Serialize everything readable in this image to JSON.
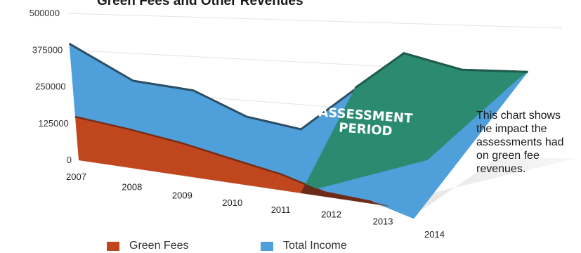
{
  "chart_data": {
    "type": "area",
    "title": "Green Fees and Other Revenues",
    "x": [
      "2007",
      "2008",
      "2009",
      "2010",
      "2011",
      "2012",
      "2013",
      "2014"
    ],
    "series": [
      {
        "name": "Green Fees",
        "values": [
          148000,
          125000,
          100000,
          70000,
          45000,
          12000,
          5000,
          -22000
        ]
      },
      {
        "name": "Total Income",
        "values": [
          397000,
          285000,
          268000,
          201000,
          179000,
          415000,
          377000,
          380000
        ]
      }
    ],
    "ylim": [
      0,
      500000
    ],
    "yticks": [
      "0",
      "125000",
      "250000",
      "375000",
      "500000"
    ],
    "xlabel": "",
    "ylabel": "",
    "legend_position": "bottom",
    "grid": true,
    "annotation": [
      "ASSESSMENT",
      "PERIOD"
    ],
    "highlight_range": [
      "2011",
      "2014"
    ],
    "colors": {
      "green_fees": "#c0461e",
      "green_fees_dark": "#6b2b1a",
      "total_income": "#4f9fda",
      "assessment": "#2a8a6c",
      "assessment_edge": "#1f5a4b"
    }
  },
  "side_note": "This chart shows the impact the assessments had on green fee revenues."
}
